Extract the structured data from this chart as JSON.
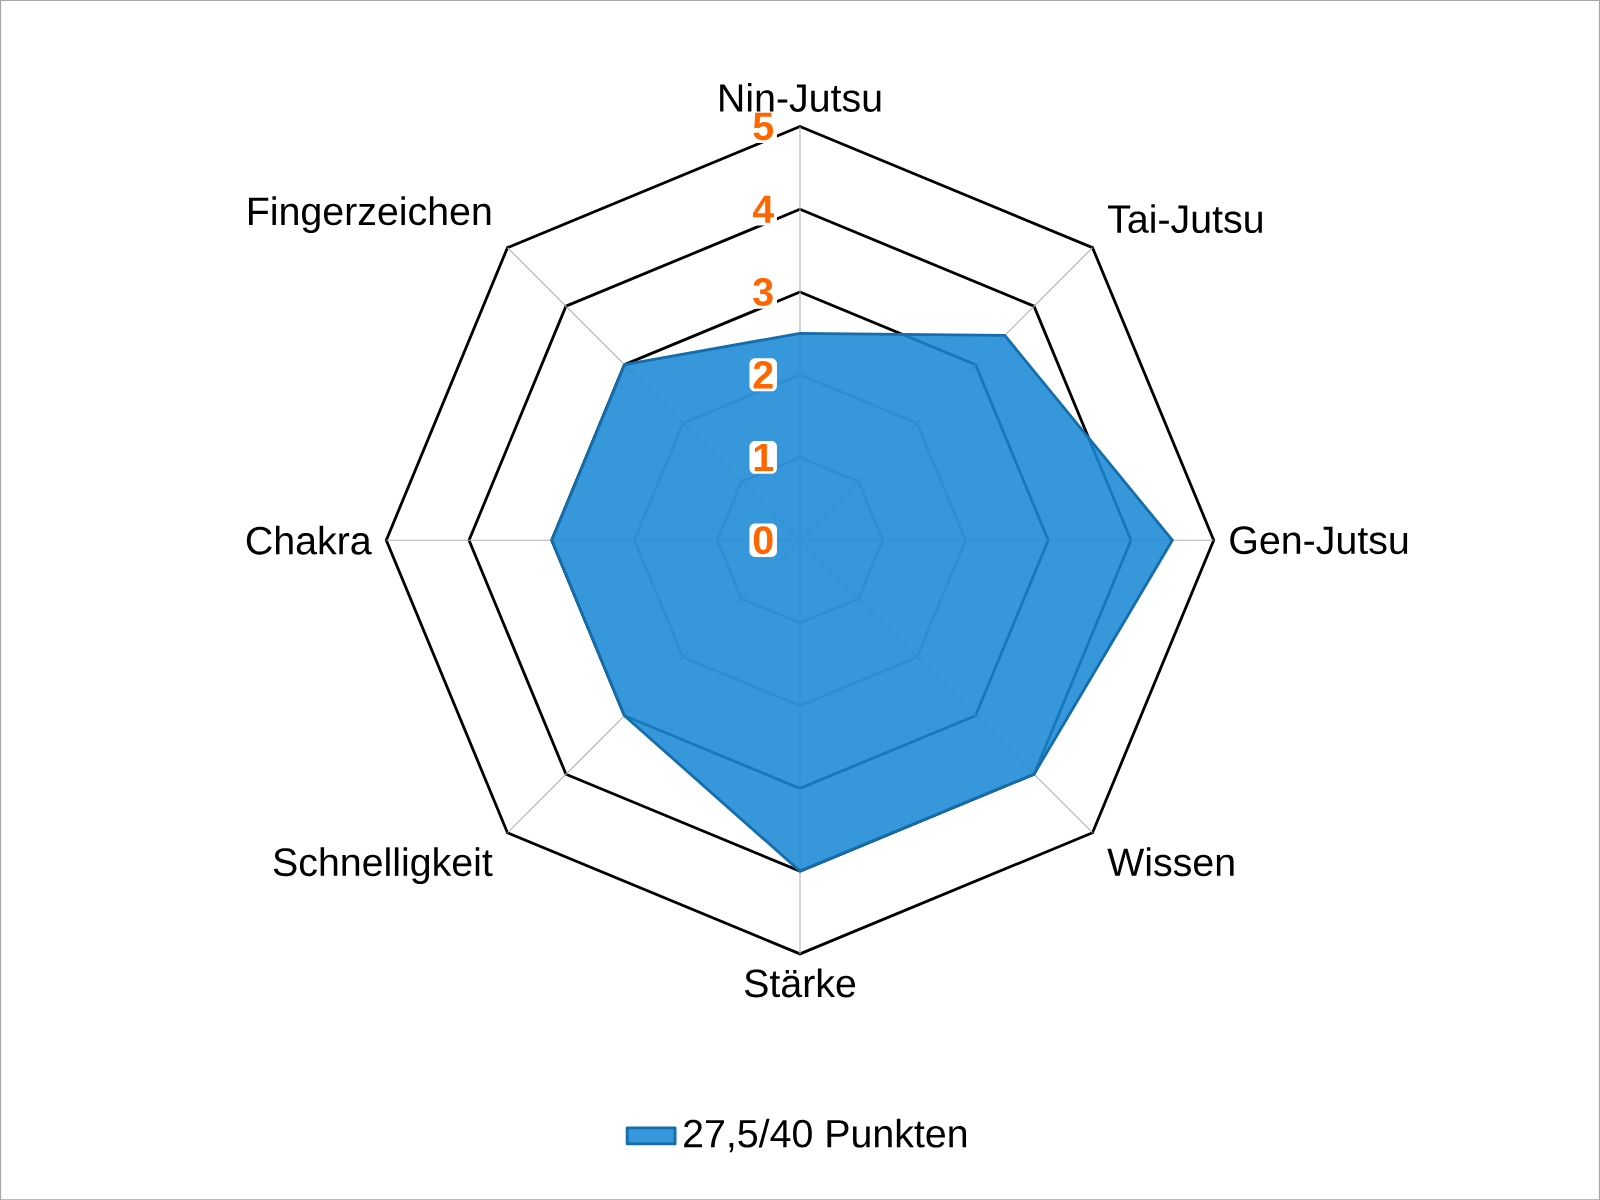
{
  "chart_data": {
    "type": "radar",
    "categories": [
      "Nin-Jutsu",
      "Tai-Jutsu",
      "Gen-Jutsu",
      "Wissen",
      "Stärke",
      "Schnelligkeit",
      "Chakra",
      "Fingerzeichen"
    ],
    "series": [
      {
        "name": "27,5/40 Punkten",
        "color": "#1a8ad6",
        "values": [
          2.5,
          3.5,
          4.5,
          4,
          4,
          3,
          3,
          3
        ]
      }
    ],
    "ylim": [
      0,
      5
    ],
    "yticks": [
      0,
      1,
      2,
      3,
      4,
      5
    ],
    "grid": true,
    "legend": "bottom"
  }
}
